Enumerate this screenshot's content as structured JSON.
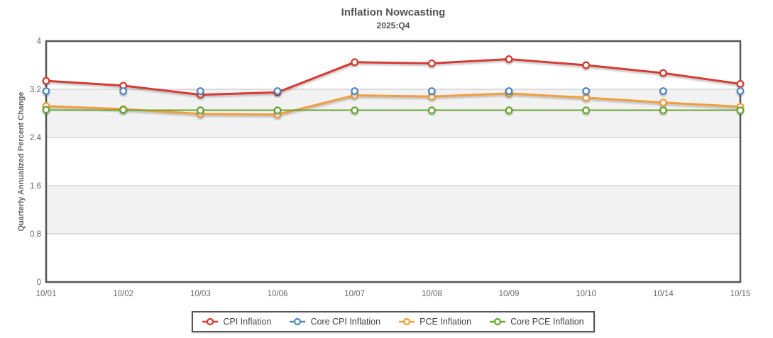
{
  "chart_data": {
    "type": "line",
    "title": "Inflation Nowcasting",
    "subtitle": "2025:Q4",
    "ylabel": "Quarterly Annualized Percent Change",
    "xlabel": "",
    "x": [
      "10/01",
      "10/02",
      "10/03",
      "10/06",
      "10/07",
      "10/08",
      "10/09",
      "10/10",
      "10/14",
      "10/15"
    ],
    "ylim": [
      0,
      4
    ],
    "yticks": [
      0,
      0.8,
      1.6,
      2.4,
      3.2,
      4
    ],
    "ytick_labels": [
      "0",
      "0.8",
      "1.6",
      "2.4",
      "3.2",
      "4"
    ],
    "grid": true,
    "legend_position": "bottom-center",
    "marker_style": "open-circle",
    "series": [
      {
        "name": "CPI Inflation",
        "color": "#d43a31",
        "values": [
          3.34,
          3.26,
          3.11,
          3.15,
          3.65,
          3.63,
          3.7,
          3.6,
          3.47,
          3.29
        ]
      },
      {
        "name": "Core CPI Inflation",
        "color": "#4f87c4",
        "values": [
          3.17,
          3.17,
          3.17,
          3.17,
          3.17,
          3.17,
          3.17,
          3.17,
          3.17,
          3.17
        ]
      },
      {
        "name": "PCE Inflation",
        "color": "#f09d3c",
        "values": [
          2.92,
          2.87,
          2.79,
          2.78,
          3.1,
          3.08,
          3.13,
          3.06,
          2.98,
          2.91
        ]
      },
      {
        "name": "Core PCE Inflation",
        "color": "#68a530",
        "values": [
          2.86,
          2.86,
          2.85,
          2.85,
          2.85,
          2.85,
          2.85,
          2.85,
          2.85,
          2.85
        ]
      }
    ],
    "colors": {
      "axis_border": "#555555",
      "gridline": "#cccccc",
      "band_fill": "#f2f2f2",
      "background": "#ffffff",
      "title_text": "#555555",
      "tick_text": "#666666",
      "legend_text": "#444444"
    }
  }
}
